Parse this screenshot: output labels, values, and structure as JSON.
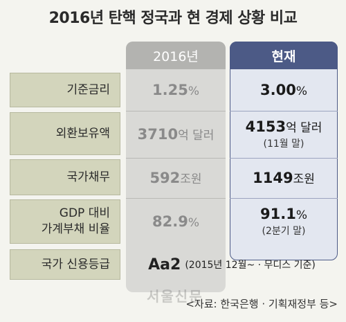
{
  "chart_data": {
    "type": "table",
    "title": "2016년 탄핵 정국과 현 경제 상황 비교",
    "columns": [
      "2016년",
      "현재"
    ],
    "rows": [
      {
        "label": [
          "기준금리"
        ],
        "v2016": {
          "value": "1.25",
          "unit": "%"
        },
        "vnow": {
          "value": "3.00",
          "unit": "%"
        }
      },
      {
        "label": [
          "외환보유액"
        ],
        "v2016": {
          "value": "3710",
          "unit": "억 달러"
        },
        "vnow": {
          "value": "4153",
          "unit": "억 달러",
          "note": "(11월 말)"
        }
      },
      {
        "label": [
          "국가채무"
        ],
        "v2016": {
          "value": "592",
          "unit": "조원"
        },
        "vnow": {
          "value": "1149",
          "unit": "조원"
        }
      },
      {
        "label": [
          "GDP 대비",
          "가계부채 비율"
        ],
        "v2016": {
          "value": "82.9",
          "unit": "%"
        },
        "vnow": {
          "value": "91.1",
          "unit": "%",
          "note": "(2분기 말)"
        }
      }
    ],
    "rating": {
      "label": "국가 신용등급",
      "value": "Aa2",
      "note": "(2015년 12월~ · 무디스 기준)"
    },
    "source": "<자료: 한국은행 · 기획재정부 등>",
    "watermark": "서울신문"
  }
}
